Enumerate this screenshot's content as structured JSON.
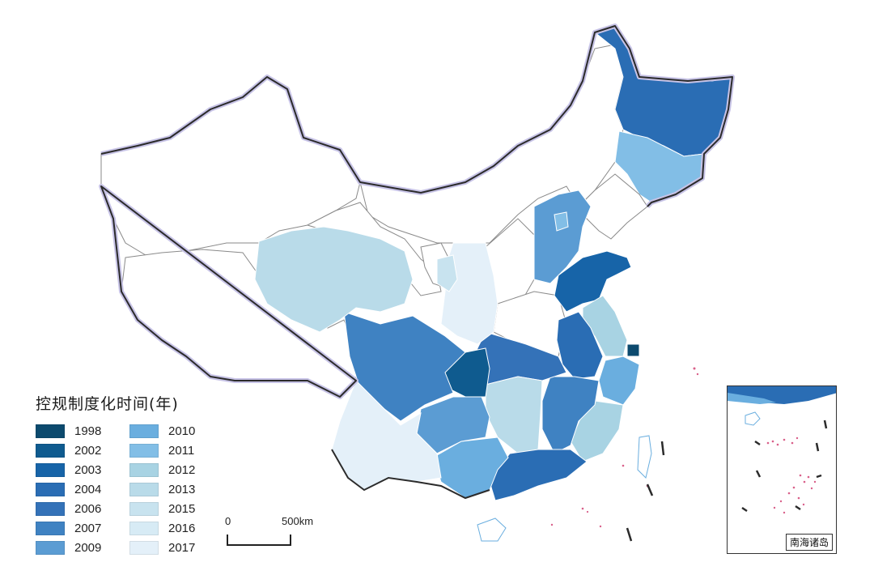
{
  "legend": {
    "title": "控规制度化时间(年)",
    "items": [
      {
        "year": "1998",
        "color": "#0c4a6e"
      },
      {
        "year": "2002",
        "color": "#0f5b8f"
      },
      {
        "year": "2003",
        "color": "#1764a8"
      },
      {
        "year": "2004",
        "color": "#2a6db4"
      },
      {
        "year": "2006",
        "color": "#3472b8"
      },
      {
        "year": "2007",
        "color": "#3f82c2"
      },
      {
        "year": "2009",
        "color": "#5b9cd3"
      },
      {
        "year": "2010",
        "color": "#6aaedf"
      },
      {
        "year": "2011",
        "color": "#82bee6"
      },
      {
        "year": "2012",
        "color": "#a8d3e3"
      },
      {
        "year": "2013",
        "color": "#b9dbe9"
      },
      {
        "year": "2015",
        "color": "#c8e3ef"
      },
      {
        "year": "2016",
        "color": "#d7ebf5"
      },
      {
        "year": "2017",
        "color": "#e4f0f9"
      }
    ]
  },
  "scale": {
    "start": "0",
    "end": "500km"
  },
  "inset": {
    "label": "南海诸岛"
  },
  "colors": {
    "border": "#2b2b2b",
    "glow": "#c7c3e6",
    "internal": "#8a8a8a",
    "island": "#d9608a",
    "unshaded": "#ffffff"
  }
}
